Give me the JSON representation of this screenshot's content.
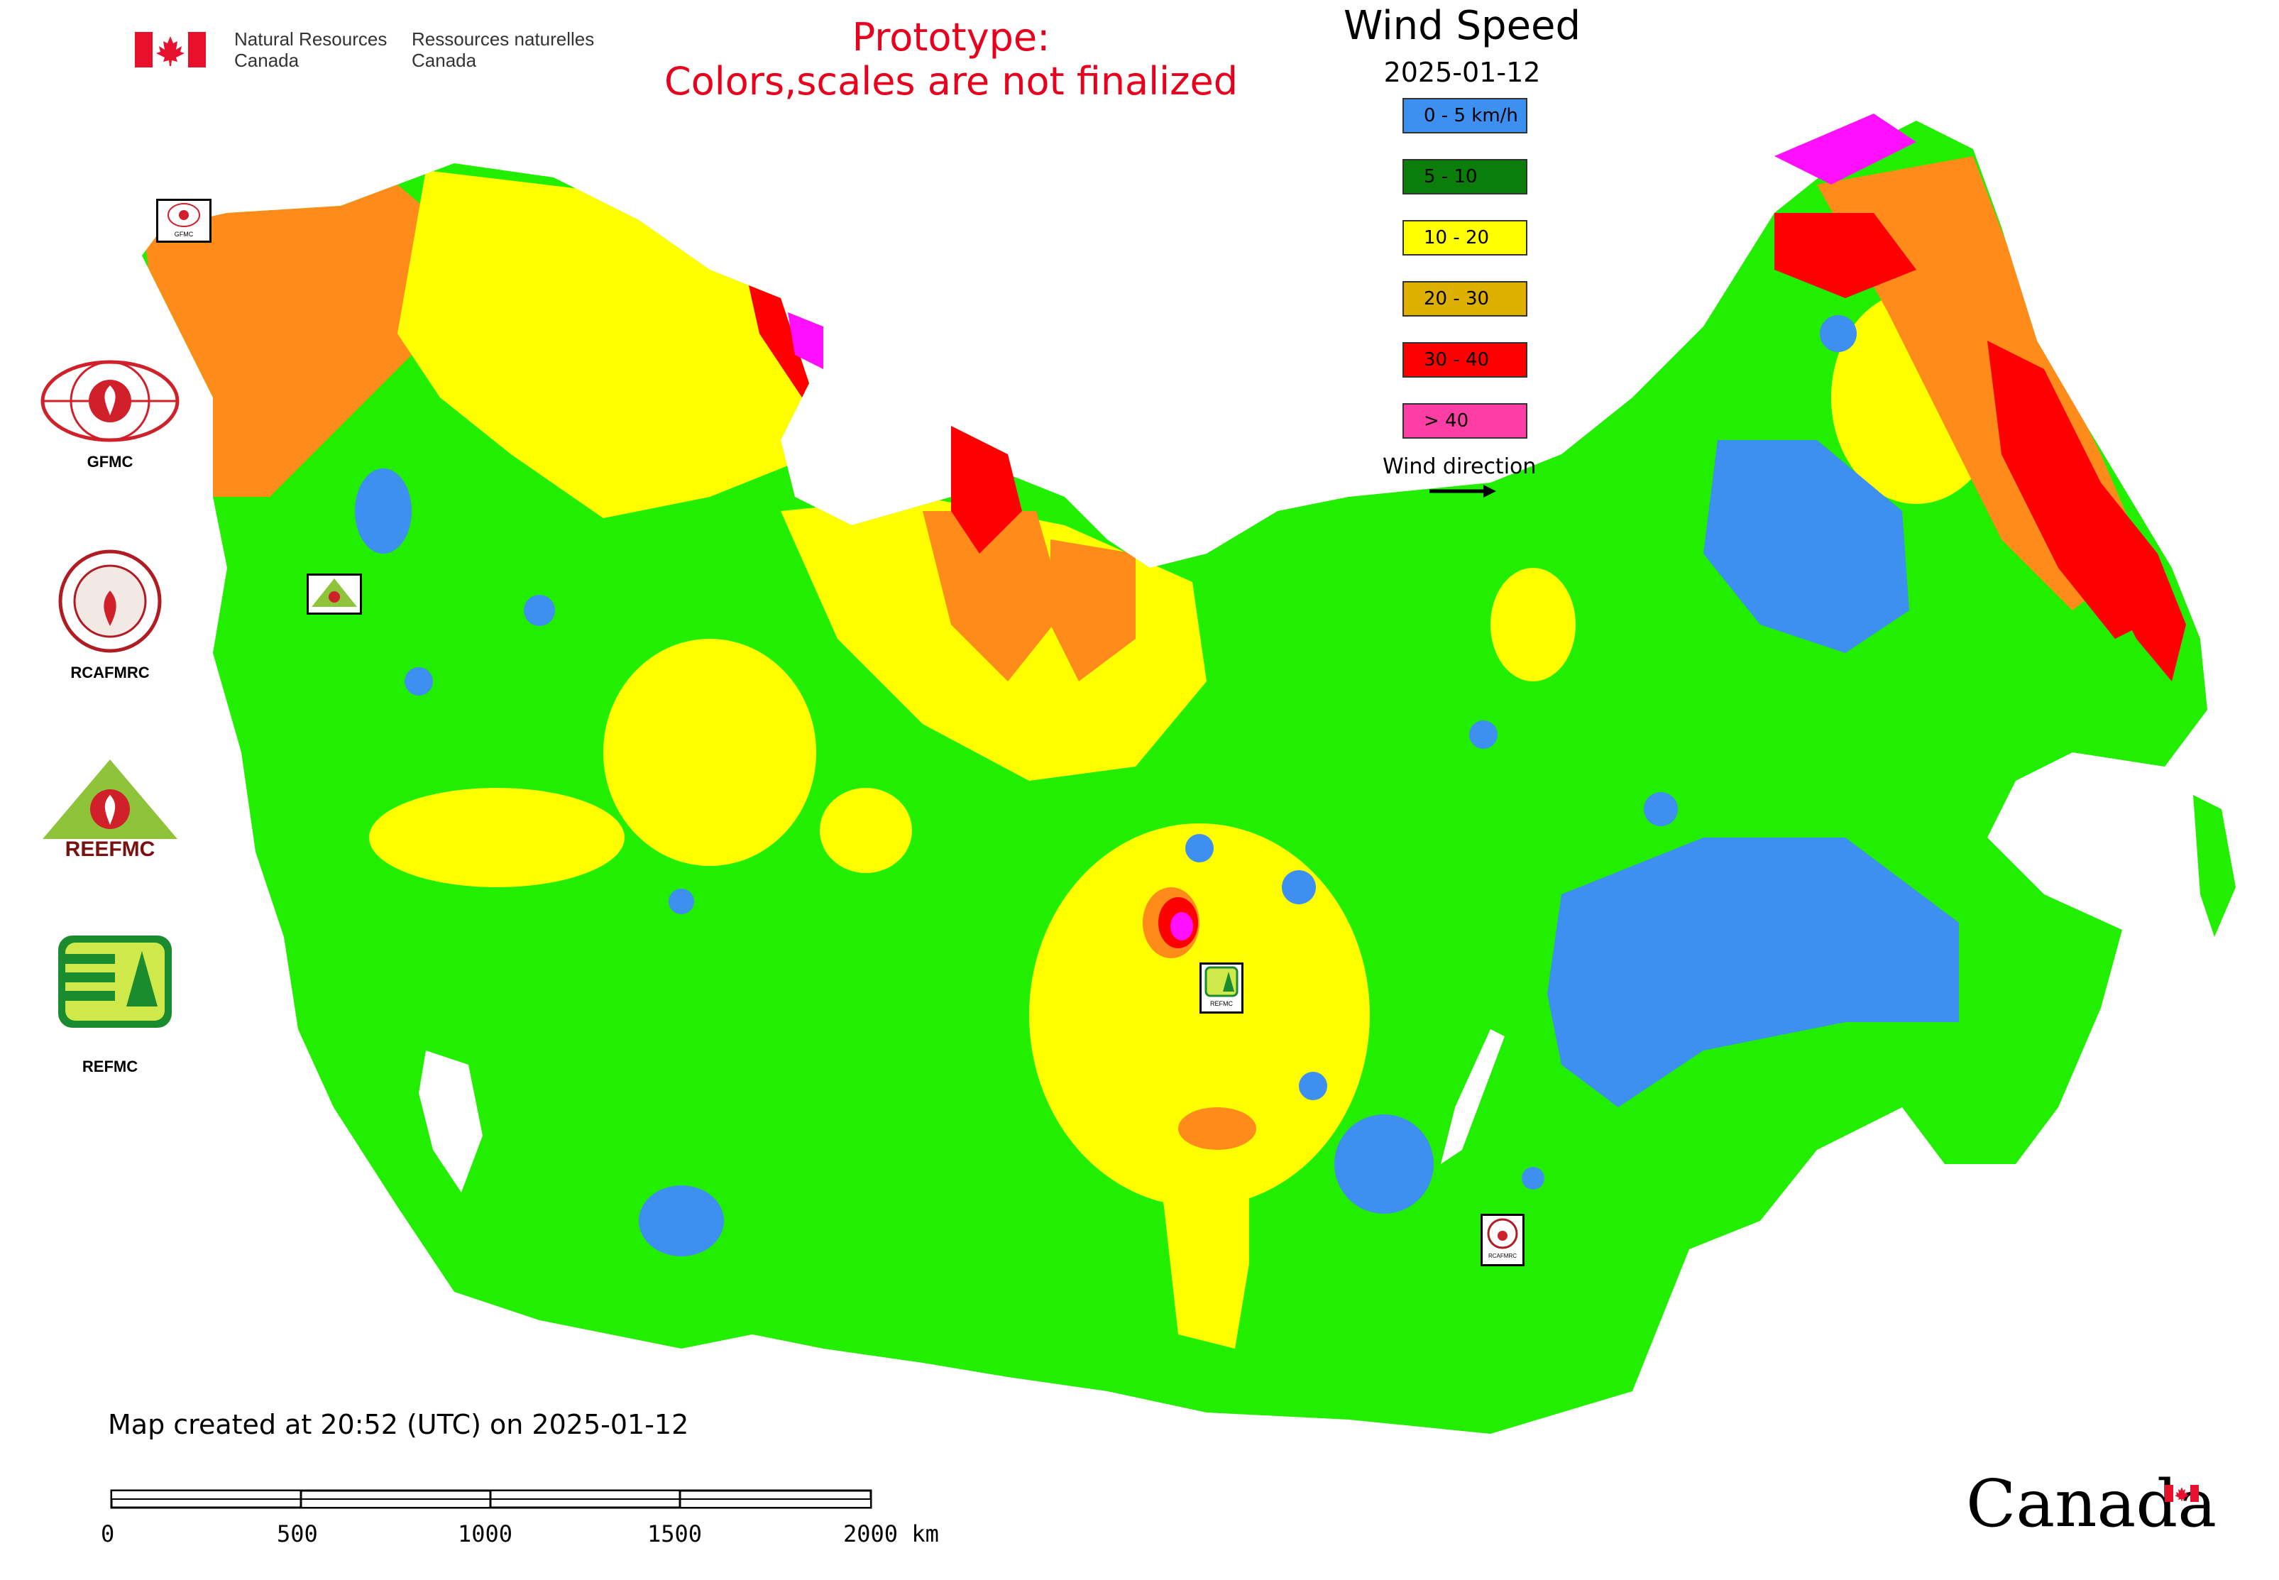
{
  "header": {
    "agency_en_line1": "Natural Resources",
    "agency_en_line2": "Canada",
    "agency_fr_line1": "Ressources naturelles",
    "agency_fr_line2": "Canada",
    "prototype_line1": "Prototype:",
    "prototype_line2": "Colors,scales are not finalized"
  },
  "legend": {
    "title": "Wind Speed",
    "date": "2025-01-12",
    "items": [
      {
        "label": "0 - 5 km/h",
        "color": "#3d8ff0"
      },
      {
        "label": "5 - 10",
        "color": "#0a7d0a"
      },
      {
        "label": "10 - 20",
        "color": "#ffff00"
      },
      {
        "label": "20 - 30",
        "color": "#ddb000"
      },
      {
        "label": "30 - 40",
        "color": "#ff0000"
      },
      {
        "label": "> 40",
        "color": "#ff3ea5"
      }
    ],
    "wind_direction_label": "Wind direction"
  },
  "logos": [
    {
      "label": "GFMC"
    },
    {
      "label": "RCAFMRC"
    },
    {
      "label": "REEFMC"
    },
    {
      "label": "REFMC"
    }
  ],
  "map_markers": {
    "gfmc_box": "GFMC",
    "reefmc_box": "REEFMC",
    "refmc_box": "REFMC",
    "rcafmrc_box": "RCAFMRC"
  },
  "footer": {
    "created_text": "Map created at 20:52 (UTC) on 2025-01-12",
    "scale_labels": [
      "0",
      "500",
      "1000",
      "1500",
      "2000 km"
    ],
    "canada_wordmark": "Canada"
  },
  "colors": {
    "green": "#22ee00",
    "yellow": "#ffff00",
    "orange": "#ff8c1a",
    "red": "#ff0000",
    "magenta": "#ff10ff",
    "blue": "#3d8ff0"
  }
}
